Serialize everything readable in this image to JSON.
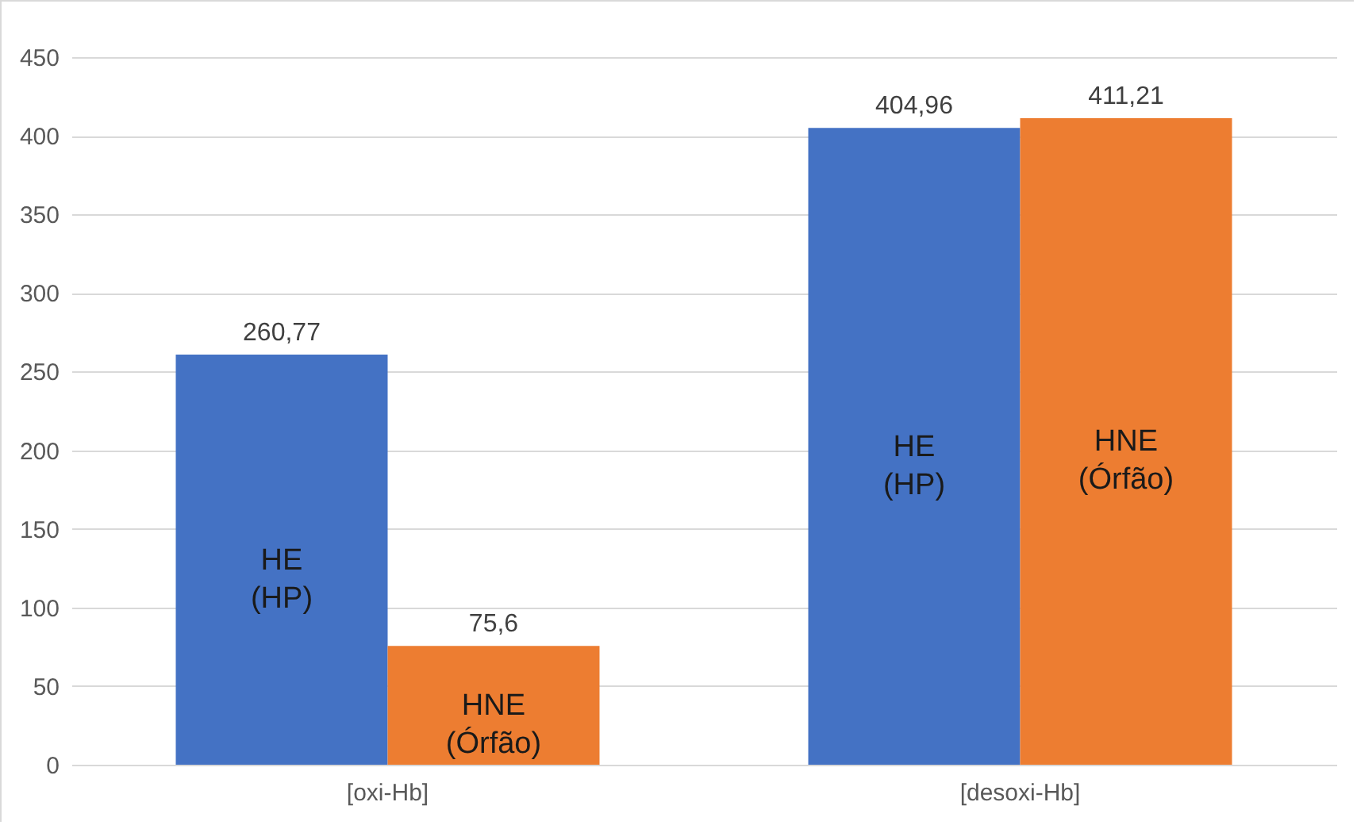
{
  "chart_data": {
    "type": "bar",
    "categories": [
      "[oxi-Hb]",
      "[desoxi-Hb]"
    ],
    "series": [
      {
        "name": "HE (HP)",
        "color": "#4472c4",
        "values": [
          260.77,
          404.96
        ],
        "value_labels": [
          "260,77",
          "404,96"
        ]
      },
      {
        "name": "HNE (Órfão)",
        "color": "#ed7d31",
        "values": [
          75.6,
          411.21
        ],
        "value_labels": [
          "75,6",
          "411,21"
        ]
      }
    ],
    "ylim": [
      0,
      450
    ],
    "yticks": [
      0,
      50,
      100,
      150,
      200,
      250,
      300,
      350,
      400,
      450
    ],
    "grid": "y"
  }
}
